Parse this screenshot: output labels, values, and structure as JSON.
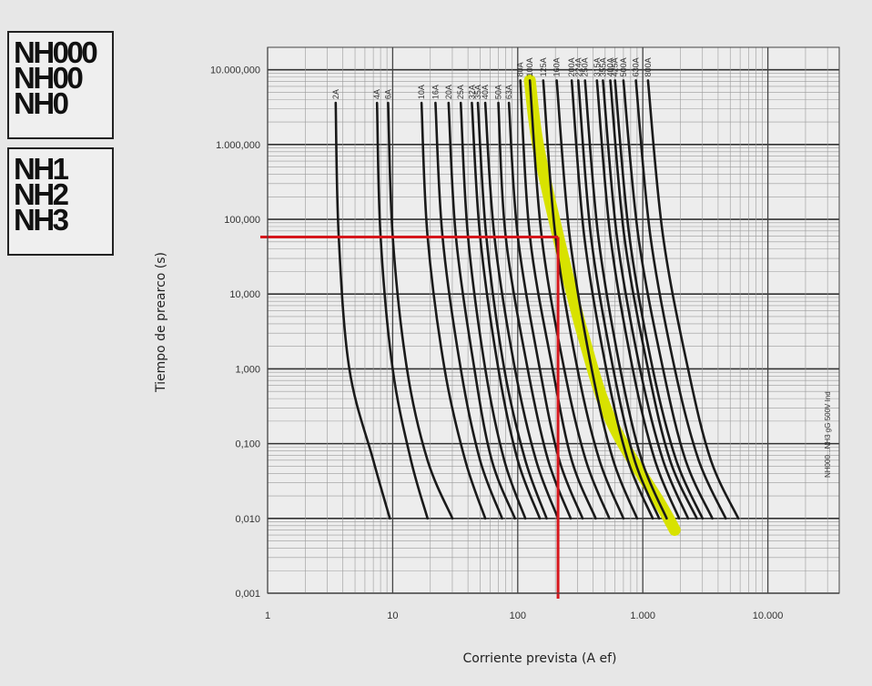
{
  "groups": [
    {
      "lines": [
        "NH000",
        "NH00",
        "NH0"
      ]
    },
    {
      "lines": [
        "NH1",
        "NH2",
        "NH3"
      ]
    }
  ],
  "chart_data": {
    "type": "line",
    "title": "",
    "xlabel": "Corriente prevista (A ef)",
    "ylabel": "Tiempo de prearco (s)",
    "x_scale": "log",
    "y_scale": "log",
    "xlim": [
      1,
      40000
    ],
    "ylim": [
      0.001,
      10000
    ],
    "x_ticks": [
      {
        "value": 1,
        "label": "1"
      },
      {
        "value": 10,
        "label": "10"
      },
      {
        "value": 100,
        "label": "100"
      },
      {
        "value": 1000,
        "label": "1.000"
      },
      {
        "value": 10000,
        "label": "10.000"
      }
    ],
    "y_ticks": [
      {
        "value": 0.001,
        "label": "0,001"
      },
      {
        "value": 0.01,
        "label": "0,010"
      },
      {
        "value": 0.1,
        "label": "0,100"
      },
      {
        "value": 1,
        "label": "1,000"
      },
      {
        "value": 10,
        "label": "10,000"
      },
      {
        "value": 100,
        "label": "100,000"
      },
      {
        "value": 1000,
        "label": "1.000,000"
      },
      {
        "value": 10000,
        "label": "10.000,000"
      }
    ],
    "grid": true,
    "side_annotation": "NH000...NH3 gG 500V Ind",
    "series": [
      {
        "name": "2A",
        "x": [
          3.5,
          3.7,
          4.5,
          7.0,
          9.5
        ],
        "y": [
          3600,
          60,
          1.0,
          0.06,
          0.01
        ]
      },
      {
        "name": "4A",
        "x": [
          7.5,
          8.0,
          10,
          14,
          19
        ],
        "y": [
          3600,
          60,
          1.0,
          0.06,
          0.01
        ]
      },
      {
        "name": "6A",
        "x": [
          9.2,
          10,
          13,
          19,
          30
        ],
        "y": [
          3600,
          60,
          1.0,
          0.06,
          0.01
        ]
      },
      {
        "name": "10A",
        "x": [
          17,
          19,
          26,
          38,
          55
        ],
        "y": [
          3600,
          60,
          1.0,
          0.06,
          0.01
        ]
      },
      {
        "name": "16A",
        "x": [
          22,
          25,
          35,
          50,
          75
        ],
        "y": [
          3600,
          60,
          1.0,
          0.06,
          0.01
        ]
      },
      {
        "name": "20A",
        "x": [
          28,
          32,
          45,
          62,
          95
        ],
        "y": [
          3600,
          60,
          1.0,
          0.06,
          0.01
        ]
      },
      {
        "name": "25A",
        "x": [
          35,
          40,
          55,
          78,
          115
        ],
        "y": [
          3600,
          60,
          1.0,
          0.06,
          0.01
        ]
      },
      {
        "name": "32A",
        "x": [
          43,
          50,
          70,
          100,
          150
        ],
        "y": [
          3600,
          60,
          1.0,
          0.06,
          0.01
        ]
      },
      {
        "name": "35A",
        "x": [
          48,
          56,
          78,
          115,
          170
        ],
        "y": [
          3600,
          60,
          1.0,
          0.06,
          0.01
        ]
      },
      {
        "name": "40A",
        "x": [
          55,
          65,
          95,
          140,
          210
        ],
        "y": [
          3600,
          60,
          1.0,
          0.06,
          0.01
        ]
      },
      {
        "name": "50A",
        "x": [
          70,
          80,
          120,
          175,
          265
        ],
        "y": [
          3600,
          60,
          1.0,
          0.06,
          0.01
        ]
      },
      {
        "name": "63A",
        "x": [
          85,
          100,
          150,
          215,
          330
        ],
        "y": [
          3600,
          60,
          1.0,
          0.06,
          0.01
        ]
      },
      {
        "name": "80A",
        "x": [
          105,
          125,
          190,
          270,
          420
        ],
        "y": [
          7200,
          60,
          1.0,
          0.06,
          0.01
        ]
      },
      {
        "name": "100A",
        "x": [
          125,
          155,
          235,
          350,
          540
        ],
        "y": [
          7200,
          60,
          1.0,
          0.06,
          0.01
        ]
      },
      {
        "name": "125A",
        "x": [
          160,
          200,
          300,
          450,
          700
        ],
        "y": [
          7200,
          60,
          1.0,
          0.06,
          0.01
        ]
      },
      {
        "name": "160A",
        "x": [
          205,
          260,
          390,
          580,
          900
        ],
        "y": [
          7200,
          60,
          1.0,
          0.06,
          0.01
        ]
      },
      {
        "name": "200A",
        "x": [
          270,
          340,
          510,
          760,
          1200
        ],
        "y": [
          7200,
          60,
          1.0,
          0.06,
          0.01
        ]
      },
      {
        "name": "224A",
        "x": [
          305,
          385,
          580,
          860,
          1350
        ],
        "y": [
          7200,
          60,
          1.0,
          0.06,
          0.01
        ]
      },
      {
        "name": "250A",
        "x": [
          345,
          440,
          660,
          980,
          1550
        ],
        "y": [
          7200,
          60,
          1.0,
          0.06,
          0.01
        ]
      },
      {
        "name": "315A",
        "x": [
          430,
          550,
          830,
          1250,
          1950
        ],
        "y": [
          7200,
          60,
          1.0,
          0.06,
          0.01
        ]
      },
      {
        "name": "355A",
        "x": [
          480,
          620,
          950,
          1450,
          2300
        ],
        "y": [
          7200,
          60,
          1.0,
          0.06,
          0.01
        ]
      },
      {
        "name": "400A",
        "x": [
          550,
          710,
          1100,
          1650,
          2700
        ],
        "y": [
          7200,
          60,
          1.0,
          0.06,
          0.01
        ]
      },
      {
        "name": "425A",
        "x": [
          600,
          780,
          1200,
          1850,
          3000
        ],
        "y": [
          7200,
          60,
          1.0,
          0.06,
          0.01
        ]
      },
      {
        "name": "500A",
        "x": [
          700,
          920,
          1450,
          2200,
          3600
        ],
        "y": [
          7200,
          60,
          1.0,
          0.06,
          0.01
        ]
      },
      {
        "name": "630A",
        "x": [
          880,
          1150,
          1800,
          2800,
          4600
        ],
        "y": [
          7200,
          60,
          1.0,
          0.06,
          0.01
        ]
      },
      {
        "name": "800A",
        "x": [
          1100,
          1450,
          2300,
          3500,
          5800
        ],
        "y": [
          7200,
          60,
          1.0,
          0.06,
          0.01
        ]
      },
      {
        "name": "160A gG (resaltada)",
        "highlight": "#d8e200",
        "x": [
          125,
          145,
          210,
          330,
          560,
          1400,
          1800
        ],
        "y": [
          7200,
          1000,
          60,
          3,
          0.2,
          0.015,
          0.007
        ]
      }
    ],
    "reference_lines": {
      "color": "#d6161c",
      "horizontal_y": 58,
      "vertical_x": 210
    }
  }
}
